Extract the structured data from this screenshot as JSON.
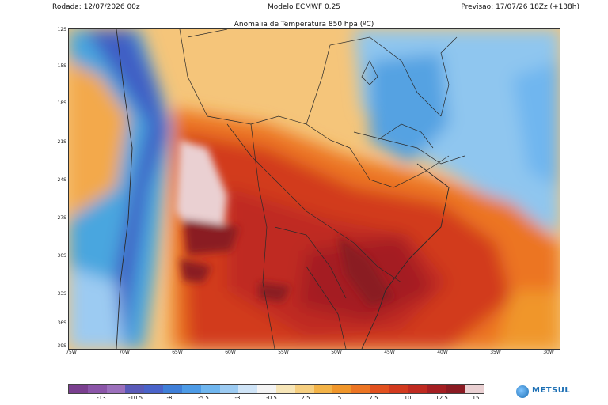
{
  "header": {
    "run": "Rodada: 12/07/2026 00z",
    "model": "Modelo ECMWF 0.25",
    "forecast": "Previsao: 17/07/26 18Zz (+138h)"
  },
  "map": {
    "title": "Anomalia de Temperatura 850 hpa (ºC)",
    "lat_labels": [
      "12S",
      "15S",
      "18S",
      "21S",
      "24S",
      "27S",
      "30S",
      "33S",
      "36S",
      "39S"
    ],
    "lon_labels": [
      "75W",
      "70W",
      "65W",
      "60W",
      "55W",
      "50W",
      "45W",
      "40W",
      "35W",
      "30W"
    ]
  },
  "legend": {
    "labels": [
      "-13",
      "-10.5",
      "-8",
      "-5.5",
      "-3",
      "-0.5",
      "2.5",
      "5",
      "7.5",
      "10",
      "12.5",
      "15"
    ],
    "colors": [
      "#7a3f8f",
      "#8b55a8",
      "#9c70bc",
      "#5a5ab8",
      "#4a63c9",
      "#3f7fd8",
      "#4d9be6",
      "#6fb6ef",
      "#9ccbf2",
      "#cfe4f7",
      "#f4f4f4",
      "#f7e6b8",
      "#f6cf80",
      "#f3b347",
      "#f0962a",
      "#ec7523",
      "#e2511f",
      "#d23a1e",
      "#bf2a20",
      "#a41e22",
      "#8a1a22",
      "#ead0d2"
    ]
  },
  "brand": {
    "name": "METSUL"
  }
}
